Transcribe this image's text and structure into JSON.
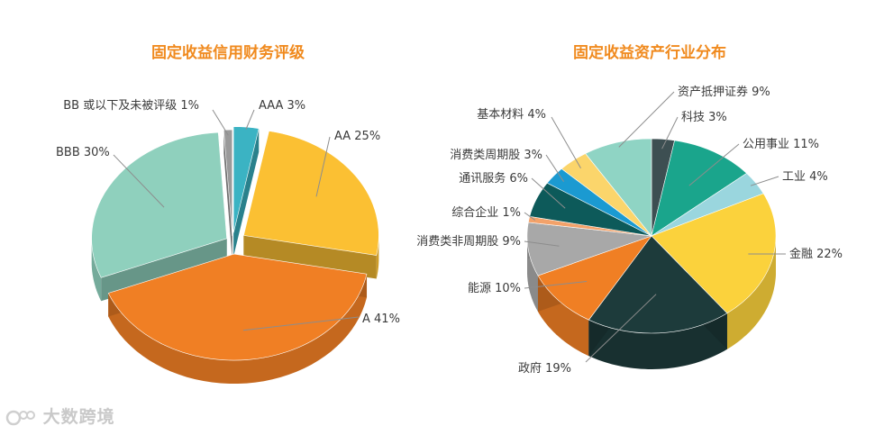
{
  "chart_data": [
    {
      "type": "pie",
      "title": "固定收益信用财务评级",
      "slices": [
        {
          "label": "AAA",
          "value": 3,
          "color": "#3bb3c3"
        },
        {
          "label": "AA",
          "value": 25,
          "color": "#fbc033"
        },
        {
          "label": "A",
          "value": 41,
          "color": "#f07f24"
        },
        {
          "label": "BBB",
          "value": 30,
          "color": "#8fd0bd"
        },
        {
          "label": "BB 或以下及未被评级",
          "value": 1,
          "color": "#9a9a9a"
        }
      ],
      "labels": [
        {
          "text": "AAA 3%"
        },
        {
          "text": "AA 25%"
        },
        {
          "text": "A 41%"
        },
        {
          "text": "BBB 30%"
        },
        {
          "text": "BB 或以下及未被评级 1%"
        }
      ]
    },
    {
      "type": "pie",
      "title": "固定收益资产行业分布",
      "slices": [
        {
          "label": "科技",
          "value": 3,
          "color": "#3d4f52"
        },
        {
          "label": "公用事业",
          "value": 11,
          "color": "#1aa58c"
        },
        {
          "label": "工业",
          "value": 4,
          "color": "#9ad6de"
        },
        {
          "label": "金融",
          "value": 22,
          "color": "#fbd23c"
        },
        {
          "label": "政府",
          "value": 19,
          "color": "#1d3b3b"
        },
        {
          "label": "能源",
          "value": 10,
          "color": "#f07f24"
        },
        {
          "label": "消费类非周期股",
          "value": 9,
          "color": "#a8a8a8"
        },
        {
          "label": "综合企业",
          "value": 1,
          "color": "#f3a26a"
        },
        {
          "label": "通讯服务",
          "value": 6,
          "color": "#0d5a5a"
        },
        {
          "label": "消费类周期股",
          "value": 3,
          "color": "#1b9ad1"
        },
        {
          "label": "基本材料",
          "value": 4,
          "color": "#fbd56b"
        },
        {
          "label": "资产抵押证券",
          "value": 9,
          "color": "#8fd4c4"
        }
      ],
      "labels": [
        {
          "text": "资产抵押证券 9%"
        },
        {
          "text": "科技 3%"
        },
        {
          "text": "公用事业 11%"
        },
        {
          "text": "工业 4%"
        },
        {
          "text": "金融 22%"
        },
        {
          "text": "政府 19%"
        },
        {
          "text": "能源 10%"
        },
        {
          "text": "消费类非周期股 9%"
        },
        {
          "text": "综合企业 1%"
        },
        {
          "text": "通讯服务 6%"
        },
        {
          "text": "消费类周期股 3%"
        },
        {
          "text": "基本材料 4%"
        }
      ]
    }
  ],
  "watermark": {
    "text": "大数跨境"
  }
}
